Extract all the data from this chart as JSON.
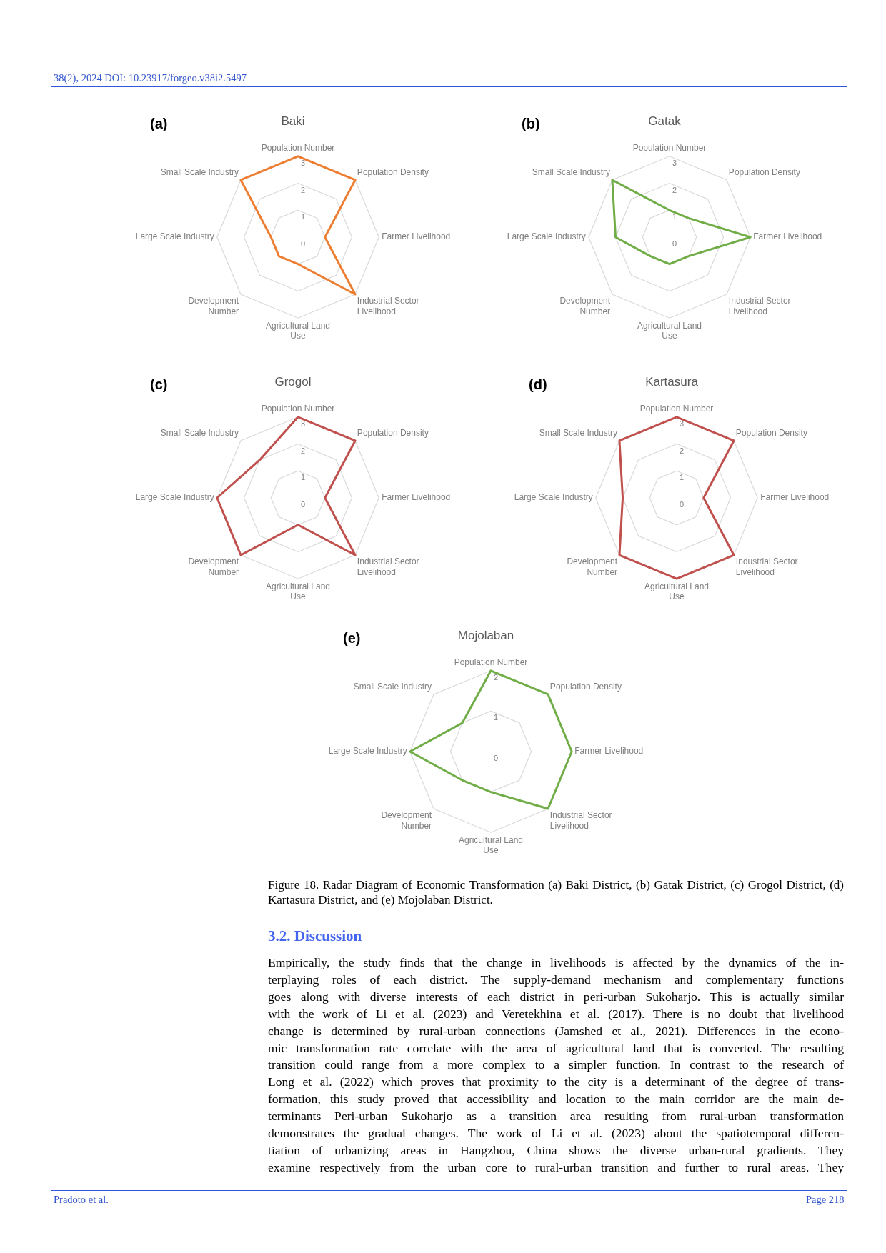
{
  "chart_data": [
    {
      "type": "radar",
      "title": "Baki",
      "annotations": [
        "(a)",
        "38(2), 2024 DOI: 10.23917/forgeo.v38i2.5497"
      ],
      "categories": [
        "Population Number",
        "Population Density",
        "Farmer Livelihood",
        "Industrial Sector Livelihood",
        "Agricultural Land Use",
        "Development Number",
        "Large Scale Industry",
        "Small Scale Industry"
      ],
      "series": [
        {
          "color": "#ed7d31",
          "values": [
            3,
            3,
            1,
            3,
            1,
            1,
            1,
            3
          ]
        }
      ],
      "ylim": [
        0,
        3
      ],
      "yticks": [
        0,
        1,
        2,
        3
      ],
      "grid": true,
      "legend": false,
      "marker": "none"
    },
    {
      "type": "radar",
      "title": "Gatak",
      "annotations": [
        "(b)"
      ],
      "categories": [
        "Population Number",
        "Population Density",
        "Farmer Livelihood",
        "Industrial Sector Livelihood",
        "Agricultural Land Use",
        "Development Number",
        "Large Scale Industry",
        "Small Scale Industry"
      ],
      "series": [
        {
          "color": "#70ad47",
          "values": [
            1,
            1,
            3,
            1,
            1,
            1,
            2,
            3
          ]
        }
      ],
      "ylim": [
        0,
        3
      ],
      "yticks": [
        0,
        1,
        2,
        3
      ],
      "grid": true,
      "legend": false,
      "marker": "none"
    },
    {
      "type": "radar",
      "title": "Grogol",
      "annotations": [
        "(c)"
      ],
      "categories": [
        "Population Number",
        "Population Density",
        "Farmer Livelihood",
        "Industrial Sector Livelihood",
        "Agricultural Land Use",
        "Development Number",
        "Large Scale Industry",
        "Small Scale Industry"
      ],
      "series": [
        {
          "color": "#c0504d",
          "values": [
            3,
            3,
            1,
            3,
            1,
            3,
            3,
            2
          ]
        }
      ],
      "ylim": [
        0,
        3
      ],
      "yticks": [
        0,
        1,
        2,
        3
      ],
      "grid": true,
      "legend": false,
      "marker": "none"
    },
    {
      "type": "radar",
      "title": "Kartasura",
      "annotations": [
        "(d)"
      ],
      "categories": [
        "Population Number",
        "Population Density",
        "Farmer Livelihood",
        "Industrial Sector Livelihood",
        "Agricultural Land Use",
        "Development Number",
        "Large Scale Industry",
        "Small Scale Industry"
      ],
      "series": [
        {
          "color": "#c0504d",
          "values": [
            3,
            3,
            1,
            3,
            3,
            3,
            2,
            3
          ]
        }
      ],
      "ylim": [
        0,
        3
      ],
      "yticks": [
        0,
        1,
        2,
        3
      ],
      "grid": true,
      "legend": false,
      "marker": "none"
    },
    {
      "type": "radar",
      "title": "Mojolaban",
      "annotations": [
        "(e)",
        "Figure 18. Radar Diagram of Economic Transformation (a) Baki District, (b) Gatak District, (c) Grogol District, (d) Kartasura District, and (e) Mojolaban District.",
        "3.2. Discussion",
        "Empirically, the study finds that the change in livelihoods is affected by the dynamics of the in-",
        "terplaying roles of each district. The supply-demand mechanism and complementary functions",
        "goes along with diverse interests of each district in peri-urban Sukoharjo. This is actually similar",
        "with the work of Li et al. (2023) and Veretekhina et al. (2017). There is no doubt that livelihood",
        "change is determined by rural-urban connections (Jamshed et al., 2021). Differences in the econo-",
        "mic transformation rate correlate with the area of agricultural land that is converted. The resulting",
        "transition could range from a more complex to a simpler function. In contrast to the research of",
        "Long et al. (2022) which proves that proximity to the city is a determinant of the degree of trans-",
        "formation, this study proved that accessibility and location to the main corridor are the main de-",
        "terminants Peri-urban Sukoharjo as a transition area resulting from rural-urban transformation",
        "demonstrates the gradual changes. The work of Li et al. (2023) about the spatiotemporal differen-",
        "tiation of urbanizing areas in Hangzhou, China shows the diverse urban-rural gradients. They",
        "examine respectively from the urban core to rural-urban transition and further to rural areas. They",
        "Pradoto et al.",
        "Page 218"
      ],
      "categories": [
        "Population Number",
        "Population Density",
        "Farmer Livelihood",
        "Industrial Sector Livelihood",
        "Agricultural Land Use",
        "Development Number",
        "Large Scale Industry",
        "Small Scale Industry"
      ],
      "series": [
        {
          "color": "#70ad47",
          "values": [
            2,
            2,
            2,
            2,
            1,
            1,
            2,
            1
          ]
        }
      ],
      "ylim": [
        0,
        2
      ],
      "yticks": [
        0,
        1,
        2
      ],
      "grid": true,
      "legend": false,
      "marker": "none"
    }
  ]
}
